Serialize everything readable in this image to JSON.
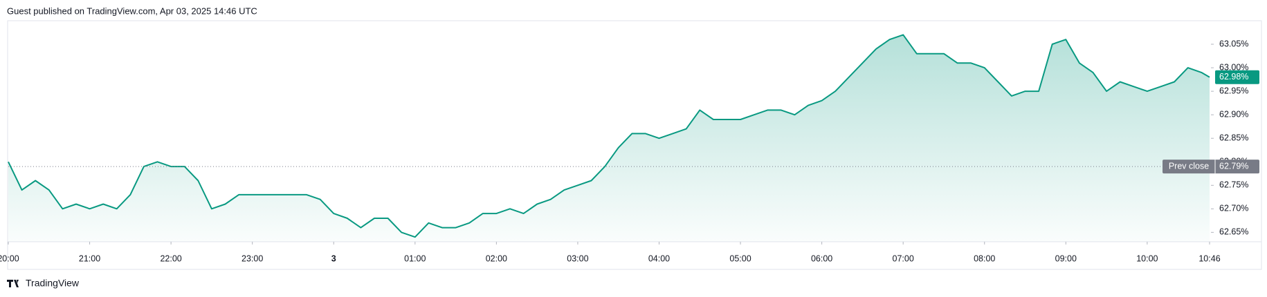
{
  "header": "Guest published on TradingView.com, Apr 03, 2025 14:46 UTC",
  "footer": "TradingView",
  "chart_data": {
    "type": "line",
    "x": [
      "20:00",
      "20:10",
      "20:20",
      "20:30",
      "20:40",
      "20:50",
      "21:00",
      "21:10",
      "21:20",
      "21:30",
      "21:40",
      "21:50",
      "22:00",
      "22:10",
      "22:20",
      "22:30",
      "22:40",
      "22:50",
      "23:00",
      "23:10",
      "23:20",
      "23:30",
      "23:40",
      "23:50",
      "00:00",
      "00:10",
      "00:20",
      "00:30",
      "00:40",
      "00:50",
      "01:00",
      "01:10",
      "01:20",
      "01:30",
      "01:40",
      "01:50",
      "02:00",
      "02:10",
      "02:20",
      "02:30",
      "02:40",
      "02:50",
      "03:00",
      "03:10",
      "03:20",
      "03:30",
      "03:40",
      "03:50",
      "04:00",
      "04:10",
      "04:20",
      "04:30",
      "04:40",
      "04:50",
      "05:00",
      "05:10",
      "05:20",
      "05:30",
      "05:40",
      "05:50",
      "06:00",
      "06:10",
      "06:20",
      "06:30",
      "06:40",
      "06:50",
      "07:00",
      "07:10",
      "07:20",
      "07:30",
      "07:40",
      "07:50",
      "08:00",
      "08:10",
      "08:20",
      "08:30",
      "08:40",
      "08:50",
      "09:00",
      "09:10",
      "09:20",
      "09:30",
      "09:40",
      "09:50",
      "10:00",
      "10:10",
      "10:20",
      "10:30",
      "10:40",
      "10:46"
    ],
    "series": [
      {
        "color": "#089981",
        "values": [
          62.8,
          62.74,
          62.76,
          62.74,
          62.7,
          62.71,
          62.7,
          62.71,
          62.7,
          62.73,
          62.79,
          62.8,
          62.79,
          62.79,
          62.76,
          62.7,
          62.71,
          62.73,
          62.73,
          62.73,
          62.73,
          62.73,
          62.73,
          62.72,
          62.69,
          62.68,
          62.66,
          62.68,
          62.68,
          62.65,
          62.64,
          62.67,
          62.66,
          62.66,
          62.67,
          62.69,
          62.69,
          62.7,
          62.69,
          62.71,
          62.72,
          62.74,
          62.75,
          62.76,
          62.79,
          62.83,
          62.86,
          62.86,
          62.85,
          62.86,
          62.87,
          62.91,
          62.89,
          62.89,
          62.89,
          62.9,
          62.91,
          62.91,
          62.9,
          62.92,
          62.93,
          62.95,
          62.98,
          63.01,
          63.04,
          63.06,
          63.07,
          63.03,
          63.03,
          63.03,
          63.01,
          63.01,
          63.0,
          62.97,
          62.94,
          62.95,
          62.95,
          63.05,
          63.06,
          63.01,
          62.99,
          62.95,
          62.97,
          62.96,
          62.95,
          62.96,
          62.97,
          63.0,
          62.99,
          62.98
        ]
      }
    ],
    "xticks": [
      "20:00",
      "21:00",
      "22:00",
      "23:00",
      {
        "value": "00:00",
        "label": "3"
      },
      "01:00",
      "02:00",
      "03:00",
      "04:00",
      "05:00",
      "06:00",
      "07:00",
      "08:00",
      "09:00",
      "10:00",
      "10:46"
    ],
    "ylim": [
      62.63,
      63.1
    ],
    "yticks": [
      {
        "value": 62.65,
        "label": "62.65%"
      },
      {
        "value": 62.7,
        "label": "62.70%"
      },
      {
        "value": 62.75,
        "label": "62.75%"
      },
      {
        "value": 62.8,
        "label": "62.80%"
      },
      {
        "value": 62.85,
        "label": "62.85%"
      },
      {
        "value": 62.9,
        "label": "62.90%"
      },
      {
        "value": 62.95,
        "label": "62.95%"
      },
      {
        "value": 63.0,
        "label": "63.00%"
      },
      {
        "value": 63.05,
        "label": "63.05%"
      }
    ],
    "last_price": {
      "value": 62.98,
      "label": "62.98%",
      "color": "#089981"
    },
    "prev_close": {
      "name": "Prev close",
      "value": 62.79,
      "label": "62.79%",
      "color": "#787b86"
    }
  }
}
